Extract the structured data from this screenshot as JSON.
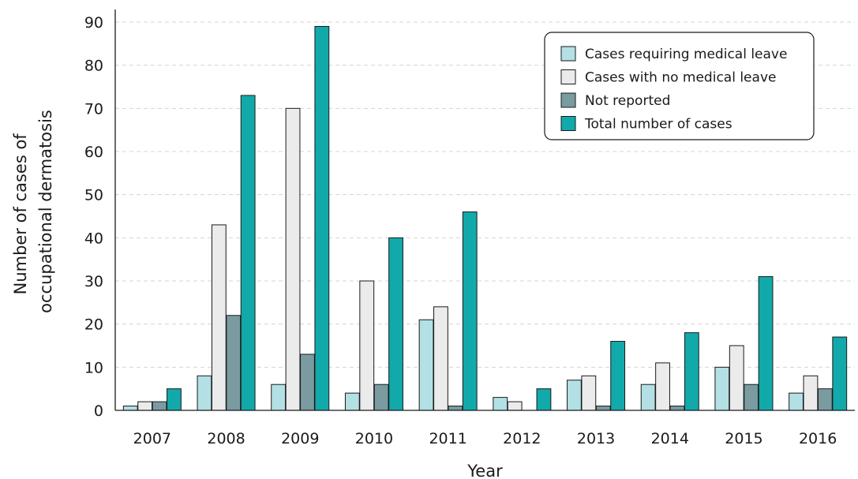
{
  "chart_data": {
    "type": "bar",
    "xlabel": "Year",
    "ylabel_lines": [
      "Number of cases of",
      "occupational dermatosis"
    ],
    "ylim": [
      0,
      92
    ],
    "yticks": [
      0,
      10,
      20,
      30,
      40,
      50,
      60,
      70,
      80,
      90
    ],
    "grid": "horizontal dashed",
    "legend_position": "top-right",
    "categories": [
      "2007",
      "2008",
      "2009",
      "2010",
      "2011",
      "2012",
      "2013",
      "2014",
      "2015",
      "2016"
    ],
    "series": [
      {
        "name": "Cases requiring medical leave",
        "color": "#b3e0e4",
        "values": [
          1,
          8,
          6,
          4,
          21,
          3,
          7,
          6,
          10,
          4
        ]
      },
      {
        "name": "Cases with no medical leave",
        "color": "#ebebeb",
        "values": [
          2,
          43,
          70,
          30,
          24,
          2,
          8,
          11,
          15,
          8
        ]
      },
      {
        "name": "Not reported",
        "color": "#7a9ba0",
        "values": [
          2,
          22,
          13,
          6,
          1,
          0,
          1,
          1,
          6,
          5
        ]
      },
      {
        "name": "Total number of cases",
        "color": "#12a9ab",
        "values": [
          5,
          73,
          89,
          40,
          46,
          5,
          16,
          18,
          31,
          17
        ]
      }
    ]
  }
}
